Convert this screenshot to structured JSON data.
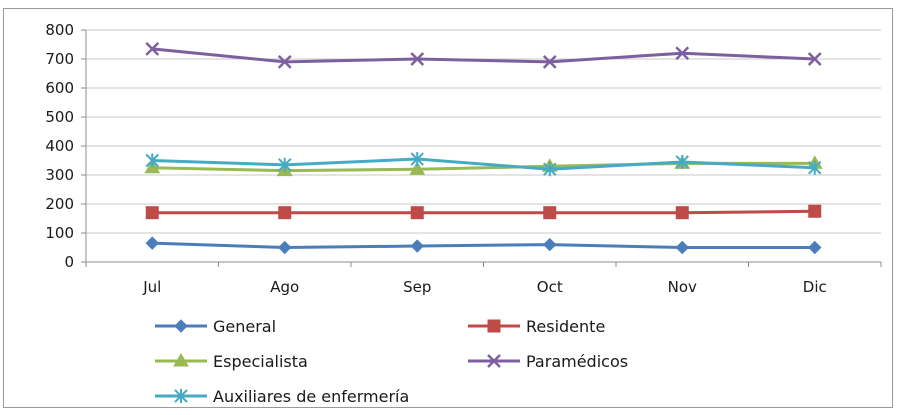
{
  "chart_data": {
    "type": "line",
    "categories": [
      "Jul",
      "Ago",
      "Sep",
      "Oct",
      "Nov",
      "Dic"
    ],
    "ylim": [
      0,
      800
    ],
    "yticks": [
      0,
      100,
      200,
      300,
      400,
      500,
      600,
      700,
      800
    ],
    "grid": true,
    "legend_position": "bottom",
    "series": [
      {
        "name": "General",
        "color": "#4a7ebb",
        "marker": "diamond",
        "values": [
          65,
          50,
          55,
          60,
          50,
          50
        ]
      },
      {
        "name": "Residente",
        "color": "#be4b48",
        "marker": "square",
        "values": [
          170,
          170,
          170,
          170,
          170,
          175
        ]
      },
      {
        "name": "Especialista",
        "color": "#98b954",
        "marker": "triangle",
        "values": [
          325,
          315,
          320,
          330,
          340,
          340
        ]
      },
      {
        "name": "Paramédicos",
        "color": "#7d5fa0",
        "marker": "x",
        "values": [
          735,
          690,
          700,
          690,
          720,
          700
        ]
      },
      {
        "name": "Auxiliares de enfermería",
        "color": "#46aac5",
        "marker": "star",
        "values": [
          350,
          335,
          355,
          320,
          345,
          325
        ]
      }
    ]
  }
}
